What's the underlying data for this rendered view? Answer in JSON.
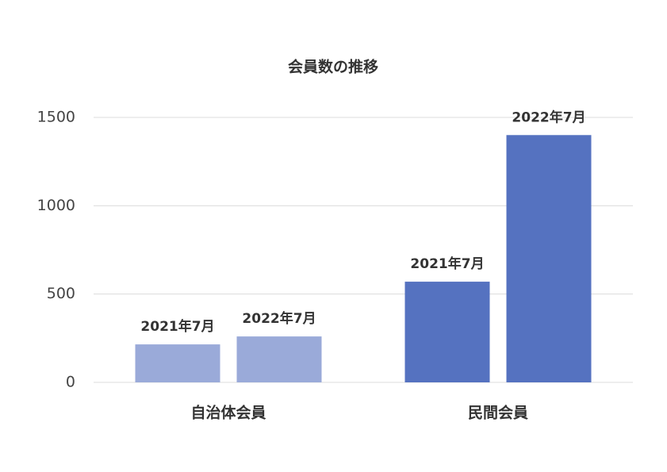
{
  "chart_data": {
    "type": "bar",
    "title": "会員数の推移",
    "categories": [
      "自治体会員",
      "民間会員"
    ],
    "category_colors": [
      "#9aaad9",
      "#5572c0"
    ],
    "series": [
      {
        "name": "2021年7月",
        "values": [
          215,
          570
        ]
      },
      {
        "name": "2022年7月",
        "values": [
          260,
          1400
        ]
      }
    ],
    "ylim": [
      0,
      1500
    ],
    "yticks": [
      0,
      500,
      1000,
      1500
    ],
    "grid": true
  }
}
